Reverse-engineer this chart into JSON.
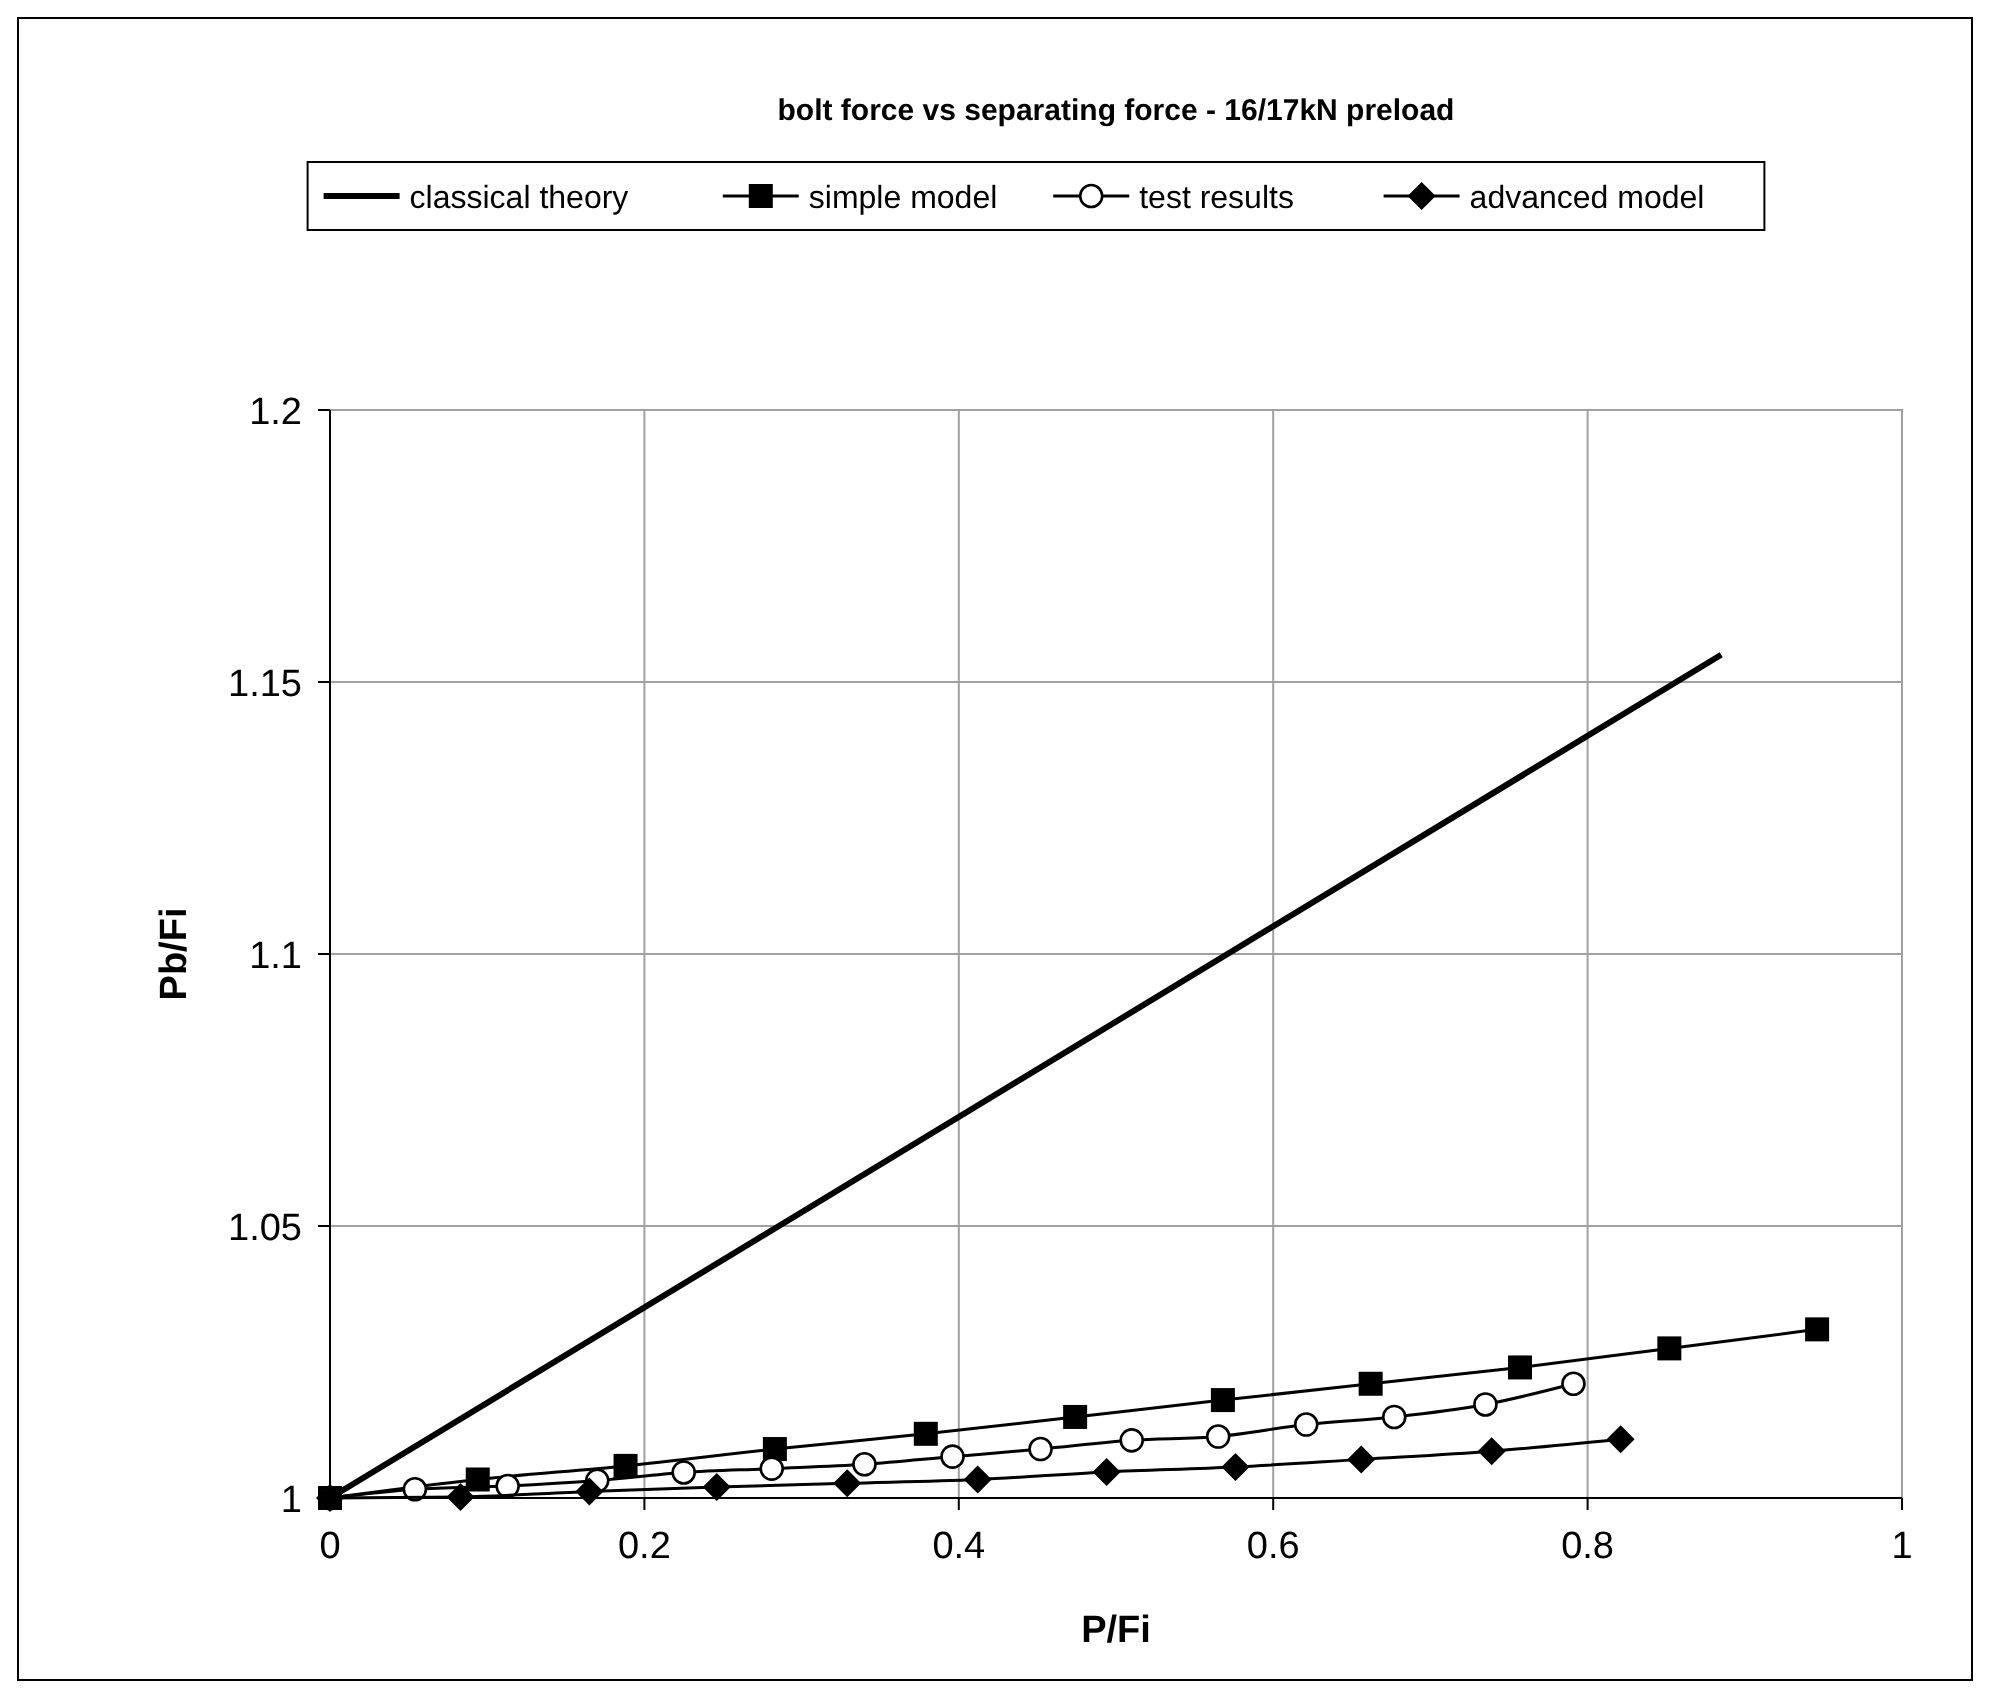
{
  "chart_data": {
    "type": "line",
    "title": "bolt force vs separating force - 16/17kN preload",
    "xlabel": "P/Fi",
    "ylabel": "Pb/Fi",
    "xlim": [
      0,
      1
    ],
    "ylim": [
      1,
      1.2
    ],
    "xticks": [
      0,
      0.2,
      0.4,
      0.6,
      0.8,
      1
    ],
    "yticks": [
      1,
      1.05,
      1.1,
      1.15,
      1.2
    ],
    "grid": true,
    "legend": "top",
    "series": [
      {
        "name": "simple model",
        "color": "#000000",
        "marker": "square",
        "x": [
          0,
          0.094,
          0.188,
          0.283,
          0.379,
          0.474,
          0.568,
          0.662,
          0.757,
          0.852,
          0.946
        ],
        "values": [
          1,
          1.0034,
          1.0059,
          1.009,
          1.0118,
          1.0149,
          1.018,
          1.021,
          1.024,
          1.0275,
          1.031
        ]
      },
      {
        "name": "test results",
        "color": "#000000",
        "marker": "circle",
        "x": [
          0,
          0.054,
          0.113,
          0.17,
          0.225,
          0.281,
          0.34,
          0.396,
          0.452,
          0.51,
          0.565,
          0.621,
          0.677,
          0.735,
          0.791
        ],
        "values": [
          1,
          1.0016,
          1.0022,
          1.0032,
          1.0047,
          1.0054,
          1.0062,
          1.0076,
          1.009,
          1.0106,
          1.0113,
          1.0135,
          1.0149,
          1.0172,
          1.021
        ]
      },
      {
        "name": "advanced model",
        "color": "#000000",
        "marker": "diamond",
        "x": [
          0,
          0.083,
          0.165,
          0.246,
          0.329,
          0.412,
          0.494,
          0.576,
          0.656,
          0.739,
          0.821
        ],
        "values": [
          1,
          1.0002,
          1.0012,
          1.002,
          1.0027,
          1.0034,
          1.0048,
          1.0057,
          1.0071,
          1.0086,
          1.0108
        ]
      },
      {
        "name": "classical theory",
        "color": "#000000",
        "marker": "none",
        "x": [
          0,
          0.885
        ],
        "values": [
          1,
          1.155
        ]
      }
    ]
  }
}
